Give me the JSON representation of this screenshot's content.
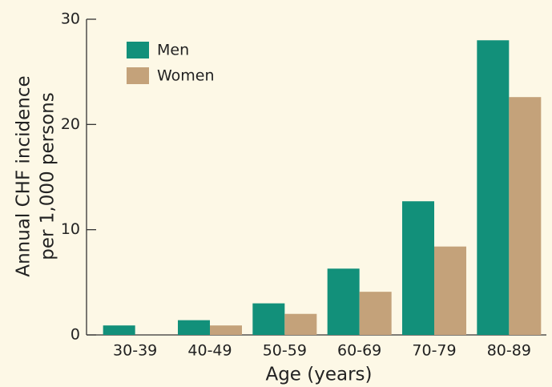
{
  "chart_data": {
    "type": "bar",
    "ylabel": [
      "Annual CHF incidence",
      "per 1,000 persons"
    ],
    "xlabel": "Age (years)",
    "categories": [
      "30-39",
      "40-49",
      "50-59",
      "60-69",
      "70-79",
      "80-89"
    ],
    "series": [
      {
        "name": "Men",
        "color": "#12907a",
        "values": [
          0.9,
          1.4,
          3.0,
          6.3,
          12.7,
          28.0
        ]
      },
      {
        "name": "Women",
        "color": "#c4a27a",
        "values": [
          null,
          0.9,
          2.0,
          4.1,
          8.4,
          22.6
        ]
      }
    ],
    "ylim": [
      0,
      30
    ],
    "yticks": [
      0,
      10,
      20,
      30
    ],
    "grid": false,
    "legend": "upper left"
  }
}
